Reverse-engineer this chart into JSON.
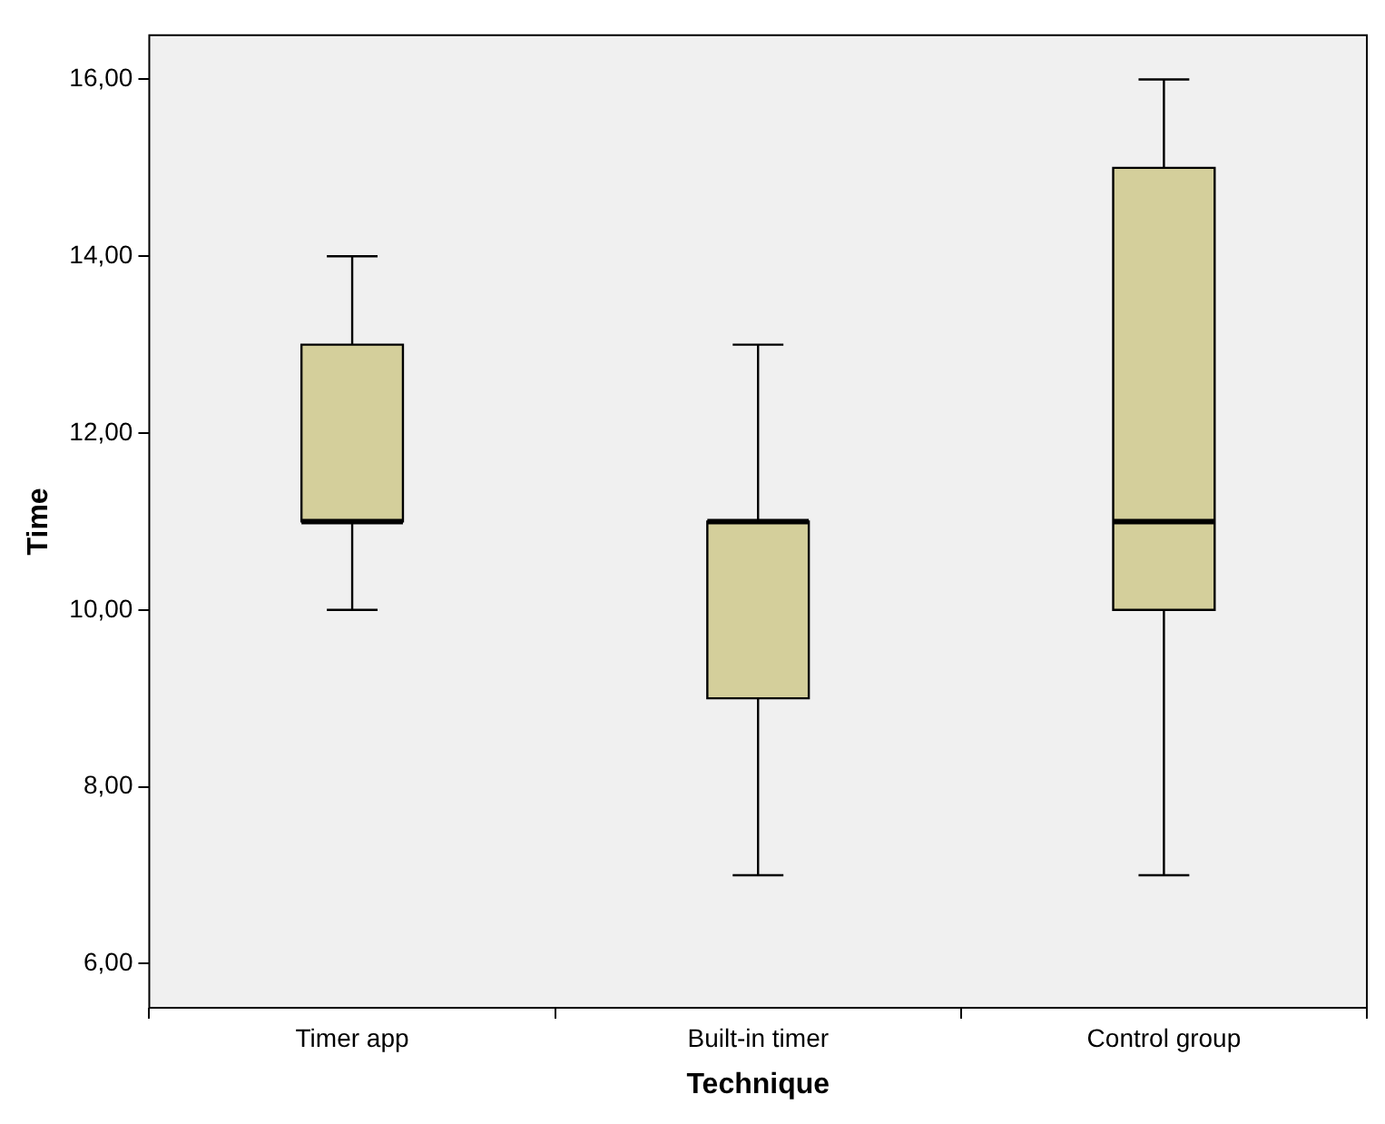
{
  "chart_data": {
    "type": "box",
    "xlabel": "Technique",
    "ylabel": "Time",
    "categories": [
      "Timer app",
      "Built-in timer",
      "Control group"
    ],
    "color": "#d4cf9b",
    "boxes": [
      {
        "low": 10,
        "q1": 11,
        "median": 11,
        "q3": 13,
        "high": 14
      },
      {
        "low": 7,
        "q1": 9,
        "median": 11,
        "q3": 11,
        "high": 13
      },
      {
        "low": 7,
        "q1": 10,
        "median": 11,
        "q3": 15,
        "high": 16
      }
    ],
    "ylim": [
      5.5,
      16.5
    ],
    "yticks": [
      {
        "value": 6,
        "label": "6,00"
      },
      {
        "value": 8,
        "label": "8,00"
      },
      {
        "value": 10,
        "label": "10,00"
      },
      {
        "value": 12,
        "label": "12,00"
      },
      {
        "value": 14,
        "label": "14,00"
      },
      {
        "value": 16,
        "label": "16,00"
      }
    ],
    "grid": false,
    "legend": false
  }
}
